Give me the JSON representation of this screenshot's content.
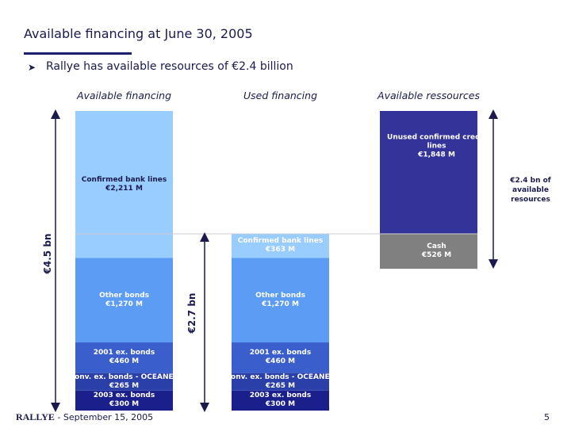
{
  "header": {
    "title": "Available financing at June 30, 2005",
    "bullet": "Rallye has available resources of €2.4 billion"
  },
  "chart_data": {
    "type": "waterfall",
    "columns": [
      "Available financing",
      "Used financing",
      "Available ressources"
    ],
    "series": [
      {
        "name": "2003 ex. bonds",
        "color": "#1a1f8c",
        "values": [
          300,
          300,
          null
        ],
        "value_labels": [
          "€300 M",
          "€300 M",
          null
        ]
      },
      {
        "name": "Conv. ex. bonds - OCEANE -",
        "color": "#2b3fa8",
        "values": [
          265,
          265,
          null
        ],
        "value_labels": [
          "€265 M",
          "€265 M",
          null
        ]
      },
      {
        "name": "2001 ex. bonds",
        "color": "#3a5fcd",
        "values": [
          460,
          460,
          null
        ],
        "value_labels": [
          "€460 M",
          "€460 M",
          null
        ]
      },
      {
        "name": "Other bonds",
        "color": "#5c9cf5",
        "values": [
          1270,
          1270,
          null
        ],
        "value_labels": [
          "€1,270 M",
          "€1,270 M",
          null
        ]
      },
      {
        "name": "Confirmed bank lines",
        "color": "#99ccff",
        "values": [
          2211,
          363,
          null
        ],
        "value_labels": [
          "€2,211 M",
          "€363 M",
          null
        ]
      },
      {
        "name": "Unused confirmed credit lines",
        "color": "#333399",
        "values": [
          null,
          null,
          1848
        ],
        "value_labels": [
          null,
          null,
          "€1,848 M"
        ]
      },
      {
        "name": "Cash",
        "color": "#808080",
        "values": [
          null,
          null,
          526
        ],
        "value_labels": [
          null,
          null,
          "€526 M"
        ]
      }
    ],
    "annotations": [
      "€4.5 bn",
      "€2.7 bn",
      "€2.4 bn of available resources"
    ]
  },
  "footer": {
    "brand": "RALLYE",
    "date": "- September 15, 2005",
    "page": "5"
  }
}
